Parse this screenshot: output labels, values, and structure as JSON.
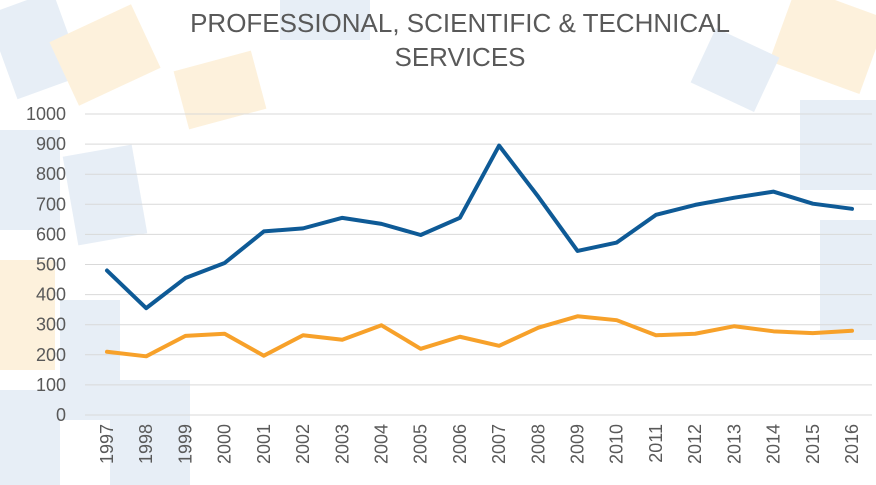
{
  "chart_data": {
    "type": "line",
    "title": "PROFESSIONAL, SCIENTIFIC & TECHNICAL SERVICES",
    "categories": [
      "1997",
      "1998",
      "1999",
      "2000",
      "2001",
      "2002",
      "2003",
      "2004",
      "2005",
      "2006",
      "2007",
      "2008",
      "2009",
      "2010",
      "2011",
      "2012",
      "2013",
      "2014",
      "2015",
      "2016"
    ],
    "series": [
      {
        "color": "#0e5a96",
        "values": [
          480,
          355,
          455,
          505,
          610,
          620,
          655,
          635,
          598,
          655,
          895,
          725,
          545,
          573,
          665,
          698,
          722,
          742,
          702,
          685
        ]
      },
      {
        "color": "#f7a12a",
        "values": [
          210,
          195,
          263,
          270,
          197,
          265,
          250,
          298,
          220,
          260,
          230,
          290,
          328,
          315,
          265,
          270,
          295,
          278,
          272,
          280
        ]
      }
    ],
    "ylim": [
      0,
      1000
    ],
    "yticks": [
      0,
      100,
      200,
      300,
      400,
      500,
      600,
      700,
      800,
      900,
      1000
    ],
    "grid": true
  }
}
